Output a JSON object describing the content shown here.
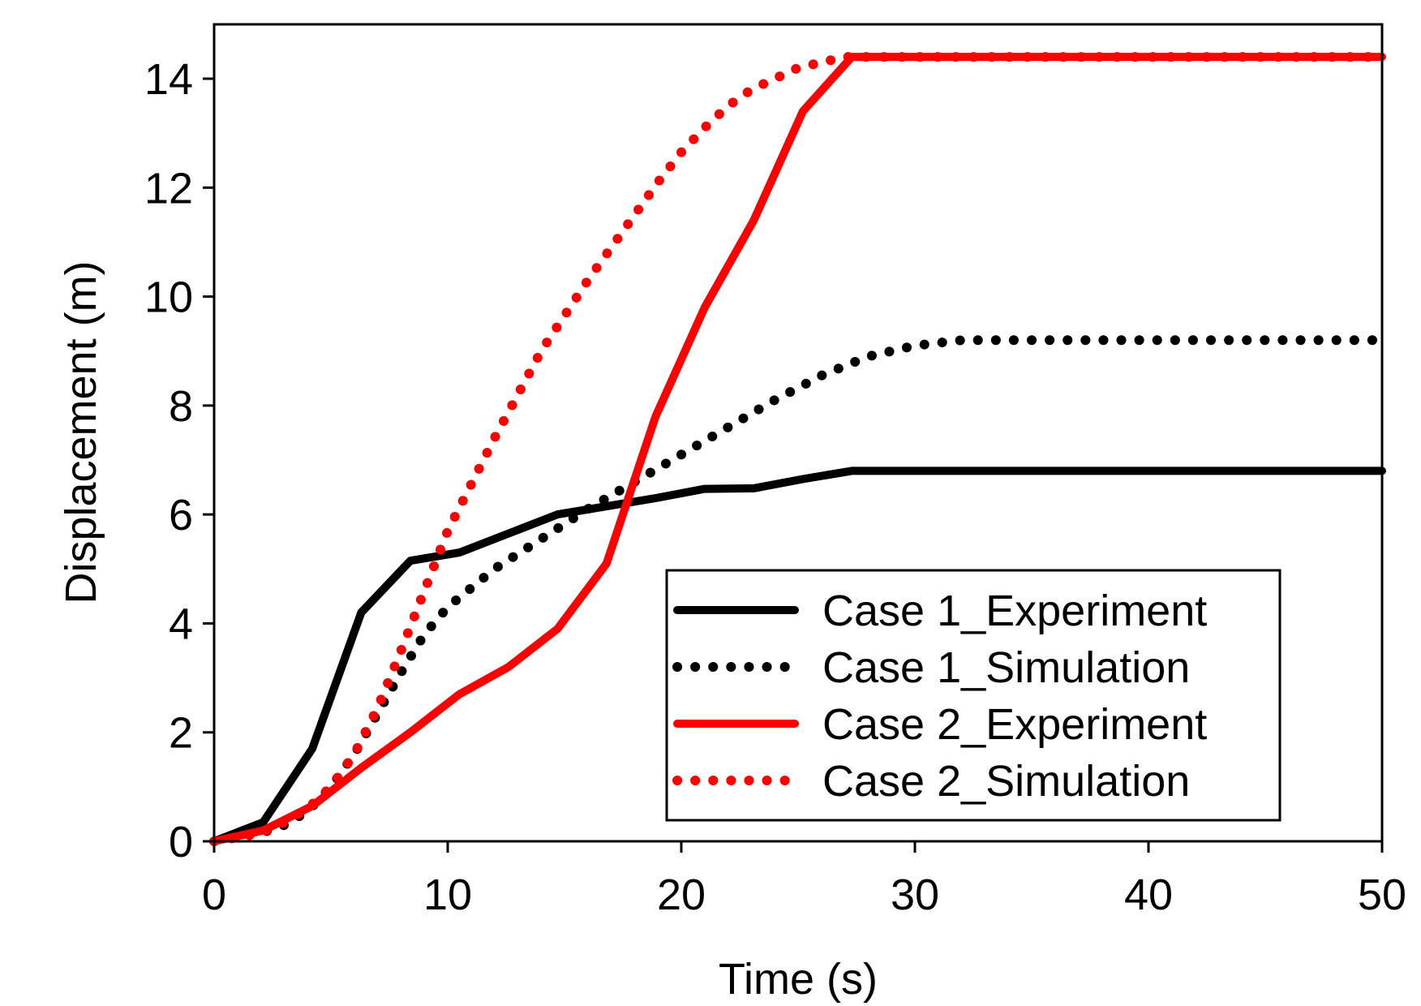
{
  "chart_data": {
    "type": "line",
    "xlabel": "Time (s)",
    "ylabel": "Displacement (m)",
    "xlim": [
      0,
      50
    ],
    "ylim": [
      0,
      15
    ],
    "x_ticks": [
      0,
      10,
      20,
      30,
      40,
      50
    ],
    "y_ticks": [
      0,
      2,
      4,
      6,
      8,
      10,
      12,
      14
    ],
    "grid": false,
    "legend_position": "bottom-right",
    "series": [
      {
        "name": "Case 1_Experiment",
        "color": "#000000",
        "style": "solid",
        "x": [
          0,
          2.1,
          4.2,
          6.3,
          8.4,
          10.5,
          12.6,
          14.7,
          16.8,
          18.9,
          21.0,
          23.1,
          25.2,
          27.3,
          50
        ],
        "y": [
          0,
          0.35,
          1.7,
          4.2,
          5.15,
          5.3,
          5.65,
          6.0,
          6.15,
          6.3,
          6.47,
          6.48,
          6.65,
          6.8,
          6.8
        ]
      },
      {
        "name": "Case 1_Simulation",
        "color": "#000000",
        "style": "dotted",
        "x": [
          0,
          2,
          3,
          4,
          5,
          6,
          7,
          8,
          9,
          10,
          12,
          14,
          16,
          18,
          20,
          22,
          24,
          26,
          28,
          30,
          32,
          34,
          50
        ],
        "y": [
          0,
          0.15,
          0.3,
          0.55,
          1.0,
          1.6,
          2.35,
          3.1,
          3.8,
          4.3,
          5.0,
          5.55,
          6.1,
          6.6,
          7.1,
          7.6,
          8.1,
          8.55,
          8.9,
          9.1,
          9.2,
          9.2,
          9.2
        ]
      },
      {
        "name": "Case 2_Experiment",
        "color": "#ff0000",
        "style": "solid",
        "x": [
          0,
          2.1,
          4.2,
          6.3,
          8.4,
          10.5,
          12.6,
          14.7,
          16.8,
          18.9,
          21.0,
          23.1,
          25.2,
          27.3,
          50
        ],
        "y": [
          0,
          0.2,
          0.65,
          1.35,
          2.0,
          2.7,
          3.2,
          3.9,
          5.1,
          7.8,
          9.8,
          11.4,
          13.4,
          14.4,
          14.4
        ]
      },
      {
        "name": "Case 2_Simulation",
        "color": "#ff0000",
        "style": "dotted",
        "x": [
          0,
          2,
          3,
          4,
          5,
          6,
          7,
          8,
          9,
          10,
          11,
          12,
          13,
          14,
          15,
          16,
          17,
          18,
          19,
          20,
          21,
          22,
          23,
          24,
          25,
          26,
          27,
          28,
          50
        ],
        "y": [
          0,
          0.15,
          0.35,
          0.6,
          1.0,
          1.6,
          2.45,
          3.5,
          4.6,
          5.7,
          6.55,
          7.4,
          8.2,
          9.0,
          9.65,
          10.3,
          10.9,
          11.5,
          12.1,
          12.65,
          13.1,
          13.5,
          13.8,
          14.0,
          14.2,
          14.3,
          14.4,
          14.4,
          14.4
        ]
      }
    ]
  }
}
